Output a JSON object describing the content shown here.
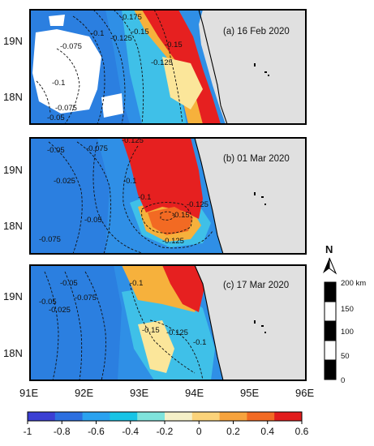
{
  "panels": [
    {
      "label": "(a) 16 Feb 2020",
      "contours": [
        "-0.175",
        "-0.15",
        "-0.125",
        "-0.1",
        "-0.075",
        "-0.1",
        "-0.075",
        "-0.05",
        "-0.125",
        "-0.15"
      ]
    },
    {
      "label": "(b) 01 Mar 2020",
      "contours": [
        "-0.05",
        "-0.075",
        "-0.125",
        "-0.025",
        "-0.1",
        "-0.15",
        "-0.125",
        "-0.05",
        "-0.075",
        "-0.1",
        "-0.125"
      ]
    },
    {
      "label": "(c) 17 Mar 2020",
      "contours": [
        "-0.05",
        "-0.025",
        "-0.075",
        "-0.05",
        "-0.1",
        "-0.15",
        "-0.125",
        "-0.1"
      ]
    }
  ],
  "axes": {
    "x_ticks": [
      "91E",
      "92E",
      "93E",
      "94E",
      "95E",
      "96E"
    ],
    "y_ticks": [
      "19N",
      "18N"
    ]
  },
  "colorbar": {
    "ticks": [
      "-1",
      "-0.8",
      "-0.6",
      "-0.4",
      "-0.2",
      "0",
      "0.2",
      "0.4",
      "0.6"
    ],
    "colors": [
      "#3b3fd4",
      "#2c6fe0",
      "#2aa2f0",
      "#17c4e6",
      "#7fe3dc",
      "#f5f0c8",
      "#fbd37a",
      "#f7a33d",
      "#f26a23",
      "#e21c1c"
    ]
  },
  "scalebar": {
    "north": "N",
    "ticks": [
      "200 km",
      "150",
      "100",
      "50",
      "0"
    ]
  },
  "colors": {
    "land": "#e0e0e0",
    "frame": "#000000",
    "cloud_gap": "#ffffff"
  }
}
